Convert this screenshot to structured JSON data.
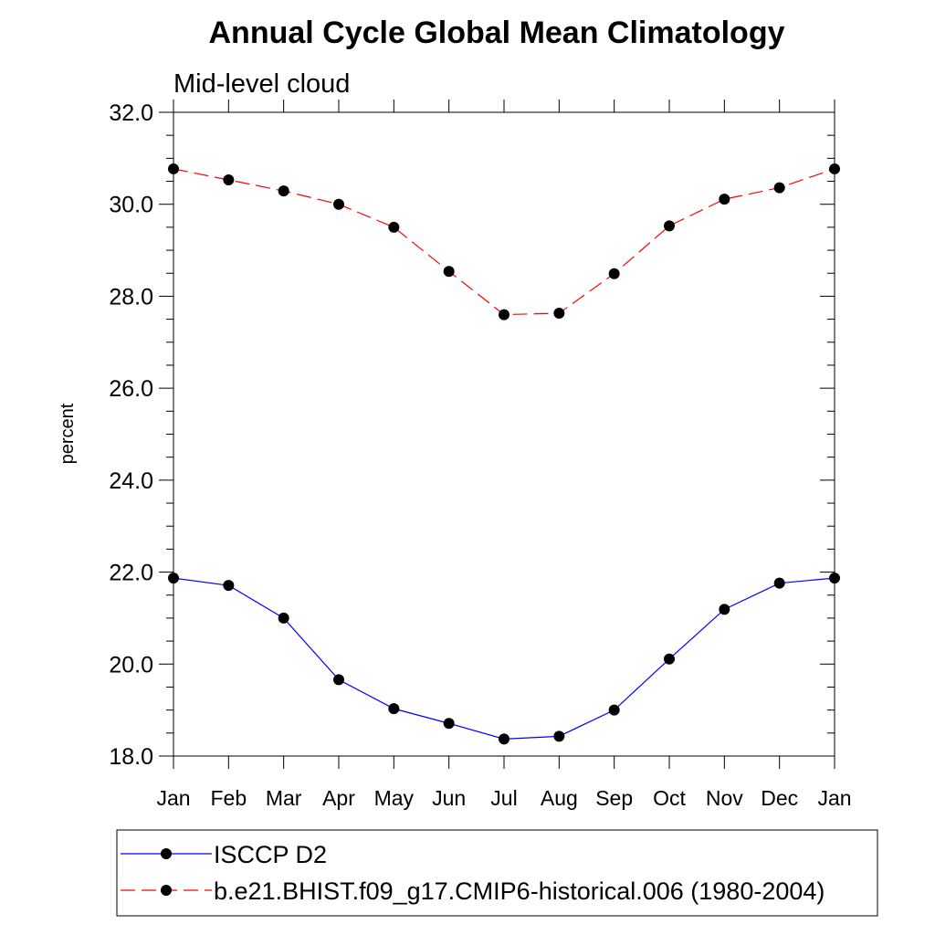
{
  "chart_data": {
    "type": "line",
    "title": "Annual Cycle Global Mean Climatology",
    "subtitle": "Mid-level cloud",
    "ylabel": "percent",
    "xlabel": "",
    "categories": [
      "Jan",
      "Feb",
      "Mar",
      "Apr",
      "May",
      "Jun",
      "Jul",
      "Aug",
      "Sep",
      "Oct",
      "Nov",
      "Dec",
      "Jan"
    ],
    "ylim": [
      18.0,
      32.0
    ],
    "yticks": [
      "18.0",
      "20.0",
      "22.0",
      "24.0",
      "26.0",
      "28.0",
      "30.0",
      "32.0"
    ],
    "series": [
      {
        "name": "ISCCP D2",
        "color": "#0000ff",
        "line_style": "solid",
        "marker": "filled-circle",
        "values": [
          21.87,
          21.71,
          21.0,
          19.66,
          19.03,
          18.71,
          18.37,
          18.43,
          19.0,
          20.11,
          21.19,
          21.76,
          21.87
        ]
      },
      {
        "name": "b.e21.BHIST.f09_g17.CMIP6-historical.006 (1980-2004)",
        "color": "#ff0000",
        "line_style": "dashed",
        "marker": "filled-circle",
        "values": [
          30.77,
          30.53,
          30.29,
          30.0,
          29.5,
          28.54,
          27.6,
          27.63,
          28.49,
          29.53,
          30.11,
          30.36,
          30.77
        ]
      }
    ],
    "grid": false,
    "legend_position": "bottom"
  }
}
